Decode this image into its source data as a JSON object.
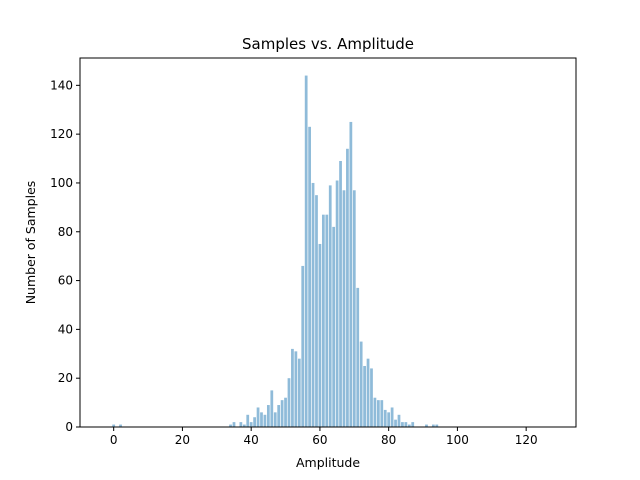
{
  "chart_data": {
    "type": "bar",
    "title": "Samples vs. Amplitude",
    "xlabel": "Amplitude",
    "ylabel": "Number of Samples",
    "xlim": [
      -9.8,
      134.5
    ],
    "ylim": [
      0,
      151.2
    ],
    "xticks": [
      0,
      20,
      40,
      60,
      80,
      100,
      120
    ],
    "yticks": [
      0,
      20,
      40,
      60,
      80,
      100,
      120,
      140
    ],
    "grid": false,
    "bar_color": "#1f77b4",
    "bar_alpha": 0.5,
    "bar_width": 0.8,
    "x": [
      0,
      2,
      34,
      35,
      37,
      38,
      39,
      40,
      41,
      42,
      43,
      44,
      45,
      46,
      47,
      48,
      49,
      50,
      51,
      52,
      53,
      54,
      55,
      56,
      57,
      58,
      59,
      60,
      61,
      62,
      63,
      64,
      65,
      66,
      67,
      68,
      69,
      70,
      71,
      72,
      73,
      74,
      75,
      76,
      77,
      78,
      79,
      80,
      81,
      82,
      83,
      84,
      85,
      86,
      87,
      91,
      93,
      94
    ],
    "values": [
      1,
      1,
      1,
      2,
      2,
      1,
      5,
      2,
      4,
      8,
      6,
      5,
      9,
      15,
      6,
      9,
      11,
      12,
      20,
      32,
      31,
      28,
      66,
      144,
      123,
      100,
      95,
      75,
      87,
      87,
      99,
      82,
      101,
      109,
      97,
      114,
      125,
      97,
      57,
      35,
      25,
      28,
      24,
      12,
      11,
      11,
      7,
      6,
      8,
      3,
      5,
      2,
      2,
      1,
      2,
      1,
      1,
      1
    ]
  }
}
